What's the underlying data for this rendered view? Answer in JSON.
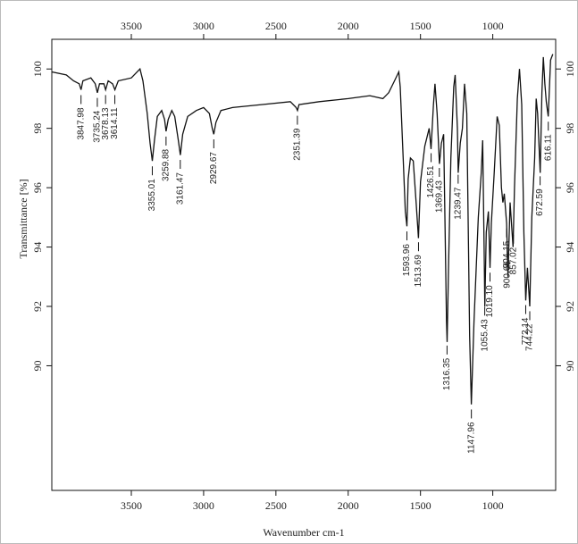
{
  "chart_data": {
    "type": "line",
    "x_label": "Wavenumber cm-1",
    "y_label": "Transmittance [%]",
    "xlim": [
      4050,
      565
    ],
    "ylim": [
      85.8,
      101
    ],
    "xticks": [
      3500,
      3000,
      2500,
      2000,
      1500,
      1000
    ],
    "yticks": [
      90,
      92,
      94,
      96,
      98,
      100
    ],
    "color": "#111111",
    "x": [
      4050,
      3950,
      3900,
      3860,
      3848,
      3835,
      3780,
      3750,
      3735,
      3720,
      3690,
      3678,
      3660,
      3630,
      3614,
      3590,
      3500,
      3440,
      3420,
      3390,
      3370,
      3355,
      3340,
      3320,
      3290,
      3270,
      3260,
      3245,
      3220,
      3200,
      3175,
      3161,
      3145,
      3110,
      3050,
      3000,
      2960,
      2940,
      2930,
      2915,
      2880,
      2800,
      2600,
      2400,
      2360,
      2351,
      2340,
      2200,
      2000,
      1850,
      1760,
      1720,
      1680,
      1650,
      1640,
      1620,
      1605,
      1594,
      1585,
      1570,
      1550,
      1530,
      1514,
      1500,
      1470,
      1440,
      1427,
      1410,
      1400,
      1385,
      1369,
      1355,
      1340,
      1320,
      1316,
      1305,
      1290,
      1270,
      1260,
      1245,
      1239,
      1225,
      1210,
      1195,
      1180,
      1160,
      1148,
      1130,
      1100,
      1080,
      1070,
      1060,
      1055,
      1045,
      1030,
      1019,
      1010,
      990,
      970,
      955,
      940,
      930,
      920,
      904,
      895,
      880,
      860,
      850,
      830,
      815,
      800,
      785,
      772,
      760,
      744,
      730,
      710,
      700,
      690,
      672,
      660,
      650,
      640,
      630,
      616,
      600,
      585
    ],
    "values": [
      99.9,
      99.8,
      99.6,
      99.5,
      99.3,
      99.6,
      99.7,
      99.5,
      99.2,
      99.5,
      99.5,
      99.3,
      99.6,
      99.5,
      99.3,
      99.6,
      99.7,
      100.0,
      99.6,
      98.5,
      97.5,
      96.9,
      97.6,
      98.4,
      98.6,
      98.3,
      97.9,
      98.3,
      98.6,
      98.4,
      97.6,
      97.1,
      97.8,
      98.4,
      98.6,
      98.7,
      98.5,
      98.0,
      97.8,
      98.2,
      98.6,
      98.7,
      98.8,
      98.9,
      98.7,
      98.6,
      98.8,
      98.9,
      99.0,
      99.1,
      99.0,
      99.2,
      99.6,
      99.9,
      99.4,
      97.0,
      95.2,
      94.7,
      96.3,
      97.0,
      96.9,
      95.5,
      94.3,
      96.2,
      97.4,
      98.0,
      97.3,
      98.8,
      99.5,
      98.5,
      96.8,
      97.5,
      97.8,
      91.5,
      90.8,
      93.5,
      97.0,
      99.4,
      99.8,
      98.0,
      96.5,
      97.5,
      98.0,
      99.5,
      98.5,
      91.0,
      88.7,
      91.5,
      95.0,
      96.5,
      97.6,
      94.0,
      92.0,
      94.5,
      95.2,
      93.3,
      94.8,
      96.5,
      98.4,
      98.1,
      96.0,
      95.5,
      95.8,
      94.8,
      93.0,
      95.5,
      94.0,
      96.0,
      99.0,
      100.0,
      98.8,
      94.5,
      92.2,
      93.3,
      92.0,
      95.0,
      97.0,
      99.0,
      98.5,
      96.5,
      99.2,
      100.4,
      99.5,
      98.9,
      98.4,
      100.3,
      100.5
    ],
    "peak_labels": [
      3847.98,
      3735.24,
      3678.13,
      3614.11,
      3355.01,
      3259.88,
      3161.47,
      2929.67,
      2351.39,
      1593.96,
      1513.69,
      1426.51,
      1369.43,
      1316.35,
      1239.47,
      1147.96,
      1055.43,
      {
        "value": 1019.1,
        "label": "1019.10"
      },
      904.15,
      900.66,
      857.02,
      772.14,
      744.22,
      672.59,
      616.11
    ]
  }
}
